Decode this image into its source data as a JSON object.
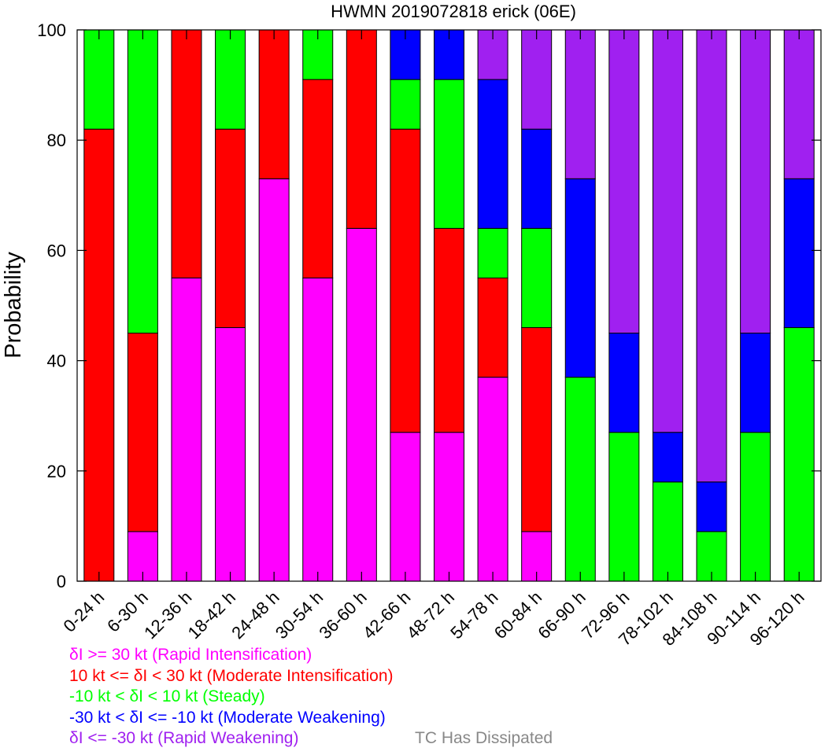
{
  "chart_data": {
    "type": "bar",
    "stacked": true,
    "title": "HWMN 2019072818 erick (06E)",
    "xlabel": "",
    "ylabel": "Probability",
    "ylim": [
      0,
      100
    ],
    "yticks": [
      0,
      20,
      40,
      60,
      80,
      100
    ],
    "grid": false,
    "legend_position": "bottom",
    "categories": [
      "0-24 h",
      "6-30 h",
      "12-36 h",
      "18-42 h",
      "24-48 h",
      "30-54 h",
      "36-60 h",
      "42-66 h",
      "48-72 h",
      "54-78 h",
      "60-84 h",
      "66-90 h",
      "72-96 h",
      "78-102 h",
      "84-108 h",
      "90-114 h",
      "96-120 h"
    ],
    "series": [
      {
        "name": "δI >= 30 kt (Rapid Intensification)",
        "color": "#ff00ff",
        "values": [
          0,
          9,
          55,
          46,
          73,
          55,
          64,
          27,
          27,
          37,
          9,
          0,
          0,
          0,
          0,
          0,
          0
        ]
      },
      {
        "name": "10 kt <= δI < 30 kt (Moderate Intensification)",
        "color": "#ff0000",
        "values": [
          82,
          36,
          45,
          36,
          27,
          36,
          36,
          55,
          37,
          18,
          37,
          0,
          0,
          0,
          0,
          0,
          0
        ]
      },
      {
        "name": "-10 kt < δI < 10 kt (Steady)",
        "color": "#00ff00",
        "values": [
          18,
          55,
          0,
          18,
          0,
          9,
          0,
          9,
          27,
          9,
          18,
          37,
          27,
          18,
          9,
          27,
          46
        ]
      },
      {
        "name": "-30 kt < δI <= -10 kt (Moderate Weakening)",
        "color": "#0000ff",
        "values": [
          0,
          0,
          0,
          0,
          0,
          0,
          0,
          9,
          9,
          27,
          18,
          36,
          18,
          9,
          9,
          18,
          27
        ]
      },
      {
        "name": "δI <= -30 kt (Rapid Weakening)",
        "color": "#a020f0",
        "values": [
          0,
          0,
          0,
          0,
          0,
          0,
          0,
          0,
          0,
          9,
          18,
          27,
          55,
          73,
          82,
          55,
          27
        ]
      }
    ],
    "dissipated_label": "TC Has Dissipated",
    "dissipated_color": "#888888"
  }
}
